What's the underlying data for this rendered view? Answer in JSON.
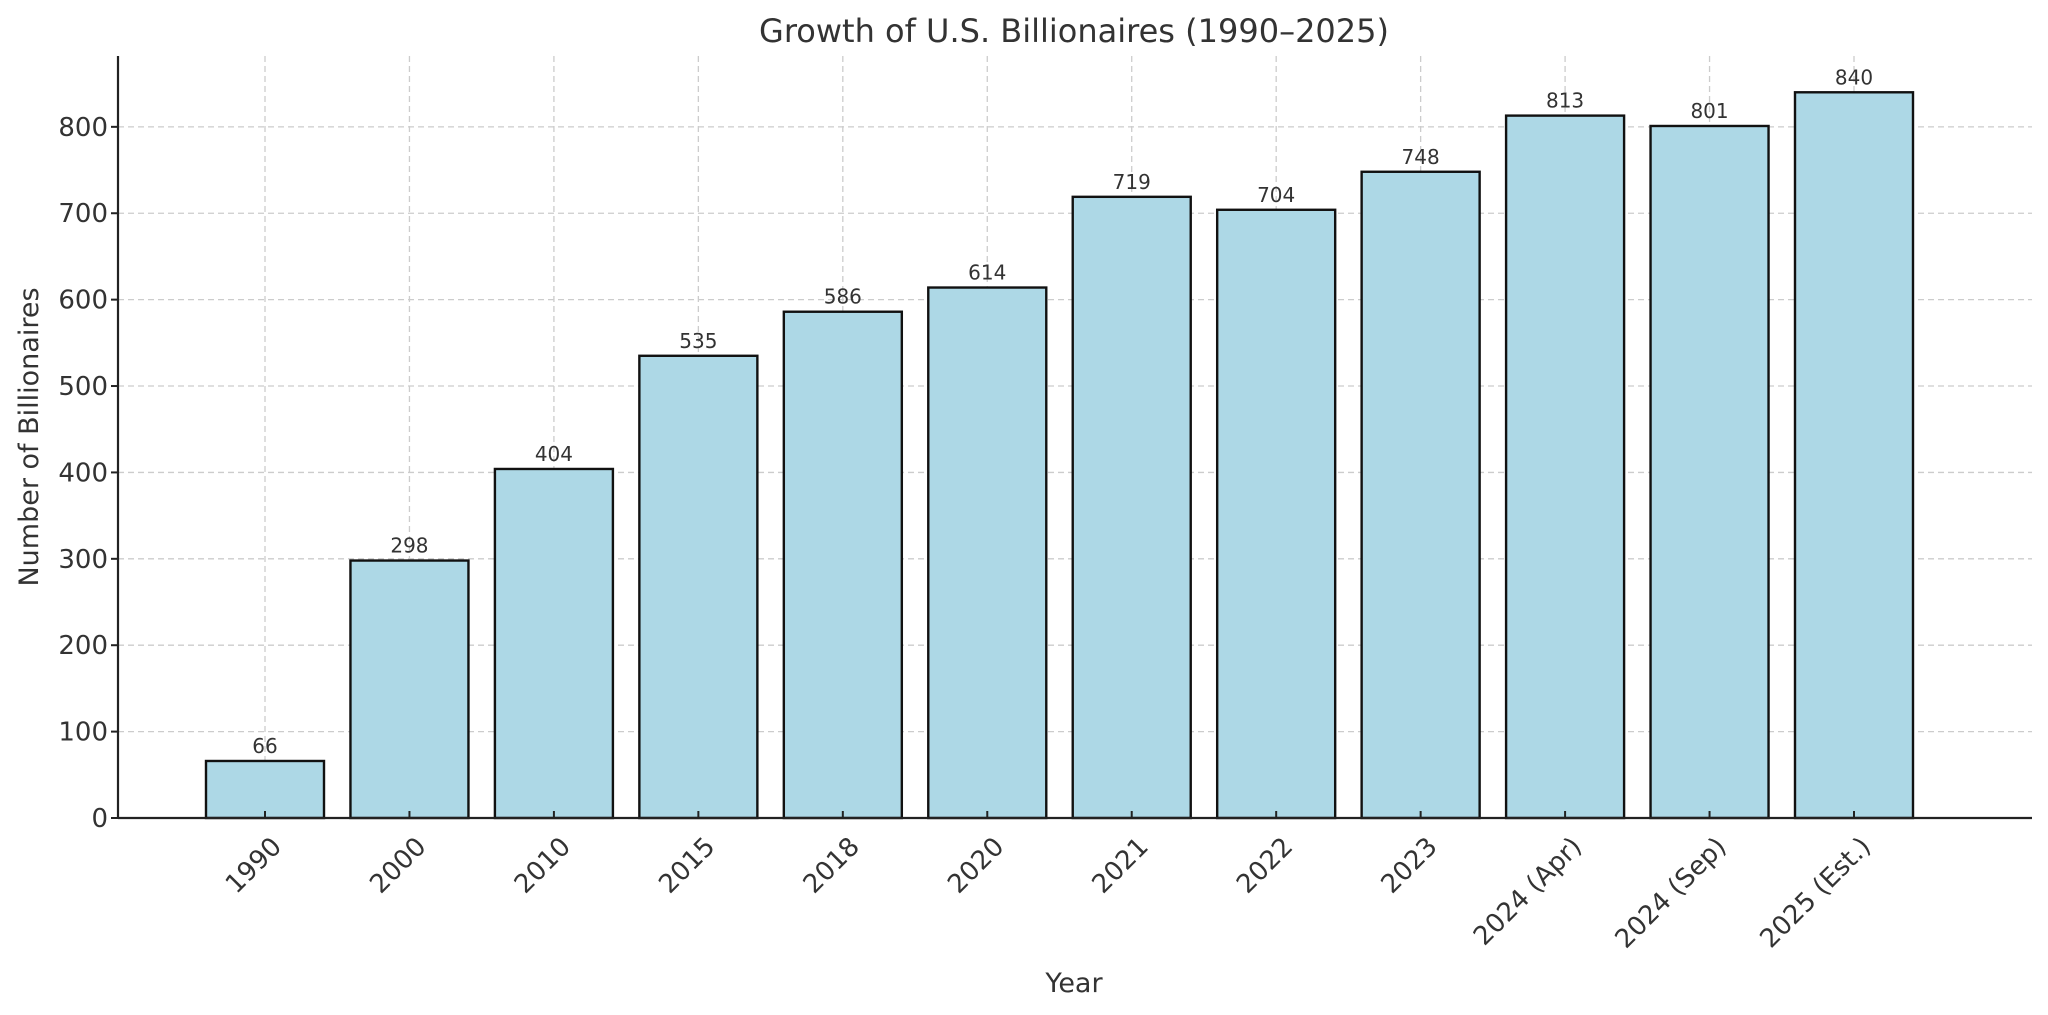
{
  "chart_data": {
    "type": "bar",
    "title": "Growth of U.S. Billionaires (1990–2025)",
    "xlabel": "Year",
    "ylabel": "Number of Billionaires",
    "categories": [
      "1990",
      "2000",
      "2010",
      "2015",
      "2018",
      "2020",
      "2021",
      "2022",
      "2023",
      "2024 (Apr)",
      "2024 (Sep)",
      "2025 (Est.)"
    ],
    "values": [
      66,
      298,
      404,
      535,
      586,
      614,
      719,
      704,
      748,
      813,
      801,
      840
    ],
    "data_labels": [
      "66",
      "298",
      "404",
      "535",
      "586",
      "614",
      "719",
      "704",
      "748",
      "813",
      "801",
      "840"
    ],
    "ylim": [
      0,
      882
    ],
    "yticks": [
      0,
      100,
      200,
      300,
      400,
      500,
      600,
      700,
      800
    ],
    "ytick_labels": [
      "0",
      "100",
      "200",
      "300",
      "400",
      "500",
      "600",
      "700",
      "800"
    ],
    "xtick_rotation_deg": 45,
    "grid": true,
    "grid_style": "dashed",
    "legend": "none",
    "colors": {
      "bar_fill": "#add8e6",
      "bar_edge": "#111111",
      "grid": "#cccccc",
      "text": "#333333"
    }
  }
}
